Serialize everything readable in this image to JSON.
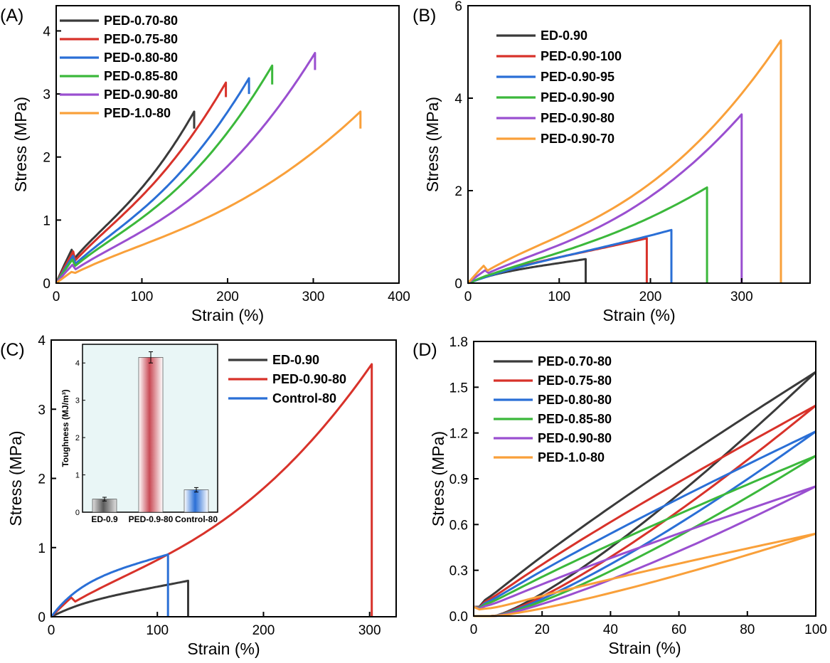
{
  "colors": {
    "black": "#3a3a3a",
    "red": "#d8322a",
    "blue": "#2a6fd6",
    "green": "#3bb83b",
    "purple": "#9a4fd0",
    "orange": "#f9a03a"
  },
  "chart_data": [
    {
      "panel": "(A)",
      "type": "line",
      "xlabel": "Strain (%)",
      "ylabel": "Stress (MPa)",
      "xlim": [
        0,
        400
      ],
      "ylim": [
        0,
        4.4
      ],
      "xticks": [
        "0",
        "100",
        "200",
        "300",
        "400"
      ],
      "yticks": [
        "0",
        "1",
        "2",
        "3",
        "4"
      ],
      "legend_position": "top-left",
      "series": [
        {
          "name": "PED-0.70-80",
          "color": "black",
          "break_strain": 161,
          "peak_stress": 2.72,
          "drop_stress": 2.45,
          "mid_stress": 1.25,
          "shape": 1.8,
          "init_slope": 0.035
        },
        {
          "name": "PED-0.75-80",
          "color": "red",
          "break_strain": 198,
          "peak_stress": 3.18,
          "drop_stress": 2.95,
          "mid_stress": 1.3,
          "shape": 1.8,
          "init_slope": 0.03
        },
        {
          "name": "PED-0.80-80",
          "color": "blue",
          "break_strain": 225,
          "peak_stress": 3.25,
          "drop_stress": 3.0,
          "mid_stress": 1.27,
          "shape": 1.9,
          "init_slope": 0.027
        },
        {
          "name": "PED-0.85-80",
          "color": "green",
          "break_strain": 252,
          "peak_stress": 3.45,
          "drop_stress": 3.15,
          "mid_stress": 1.3,
          "shape": 2.0,
          "init_slope": 0.024
        },
        {
          "name": "PED-0.90-80",
          "color": "purple",
          "break_strain": 302,
          "peak_stress": 3.65,
          "drop_stress": 3.38,
          "mid_stress": 1.22,
          "shape": 2.1,
          "init_slope": 0.018
        },
        {
          "name": "PED-1.0-80",
          "color": "orange",
          "break_strain": 355,
          "peak_stress": 2.72,
          "drop_stress": 2.45,
          "mid_stress": 1.05,
          "shape": 2.0,
          "init_slope": 0.01
        }
      ]
    },
    {
      "panel": "(B)",
      "type": "line",
      "xlabel": "Strain (%)",
      "ylabel": "Stress (MPa)",
      "xlim": [
        0,
        375
      ],
      "ylim": [
        0,
        6
      ],
      "xticks": [
        "0",
        "100",
        "200",
        "300"
      ],
      "yticks": [
        "0",
        "2",
        "4",
        "6"
      ],
      "legend_position": "top-left",
      "series": [
        {
          "name": "ED-0.90",
          "color": "black",
          "break_strain": 129,
          "peak_stress": 0.52,
          "drop_stress": 0,
          "mid_stress": 0.28,
          "shape": 1.2,
          "init_slope": 0.006
        },
        {
          "name": "PED-0.90-100",
          "color": "red",
          "break_strain": 196,
          "peak_stress": 0.97,
          "drop_stress": 0,
          "mid_stress": 0.45,
          "shape": 1.3,
          "init_slope": 0.006
        },
        {
          "name": "PED-0.90-95",
          "color": "blue",
          "break_strain": 223,
          "peak_stress": 1.15,
          "drop_stress": 0,
          "mid_stress": 0.5,
          "shape": 1.4,
          "init_slope": 0.006
        },
        {
          "name": "PED-0.90-90",
          "color": "green",
          "break_strain": 262,
          "peak_stress": 2.07,
          "drop_stress": 0,
          "mid_stress": 0.78,
          "shape": 1.8,
          "init_slope": 0.008
        },
        {
          "name": "PED-0.90-80",
          "color": "purple",
          "break_strain": 300,
          "peak_stress": 3.65,
          "drop_stress": 0,
          "mid_stress": 1.22,
          "shape": 2.1,
          "init_slope": 0.016
        },
        {
          "name": "PED-0.90-70",
          "color": "orange",
          "break_strain": 343,
          "peak_stress": 5.25,
          "drop_stress": 0,
          "mid_stress": 1.8,
          "shape": 2.2,
          "init_slope": 0.03
        }
      ]
    },
    {
      "panel": "(C)",
      "type": "line",
      "xlabel": "Strain (%)",
      "ylabel": "Stress (MPa)",
      "xlim": [
        0,
        325
      ],
      "ylim": [
        0,
        4
      ],
      "xticks": [
        "0",
        "100",
        "200",
        "300"
      ],
      "yticks": [
        "0",
        "1",
        "2",
        "3",
        "4"
      ],
      "legend_position": "top-right",
      "series": [
        {
          "name": "ED-0.90",
          "color": "black",
          "break_strain": 129,
          "peak_stress": 0.52,
          "drop_stress": 0,
          "mid_stress": 0.28,
          "shape": 1.2,
          "init_slope": 0.006
        },
        {
          "name": "PED-0.90-80",
          "color": "red",
          "break_strain": 302,
          "peak_stress": 3.65,
          "drop_stress": 0,
          "mid_stress": 1.22,
          "shape": 2.1,
          "init_slope": 0.016
        },
        {
          "name": "Control-80",
          "color": "blue",
          "break_strain": 110,
          "peak_stress": 0.9,
          "drop_stress": 0,
          "mid_stress": 0.6,
          "shape": 1.1,
          "init_slope": 0.016
        }
      ],
      "inset": {
        "type": "bar",
        "ylabel": "Toughness (MJ/m³)",
        "ylim": [
          0,
          4.5
        ],
        "yticks": [
          "0",
          "1",
          "2",
          "3",
          "4"
        ],
        "categories": [
          "ED-0.9",
          "PED-0.9-80",
          "Control-80"
        ],
        "values": [
          0.35,
          4.15,
          0.6
        ],
        "errors": [
          0.05,
          0.15,
          0.06
        ],
        "colors": [
          "black",
          "red",
          "blue"
        ]
      }
    },
    {
      "panel": "(D)",
      "type": "line",
      "xlabel": "Strain (%)",
      "ylabel": "Stress (MPa)",
      "xlim": [
        0,
        100
      ],
      "ylim": [
        0,
        1.8
      ],
      "xticks": [
        "0",
        "20",
        "40",
        "60",
        "80",
        "100"
      ],
      "yticks": [
        "0.0",
        "0.3",
        "0.6",
        "0.9",
        "1.2",
        "1.5",
        "1.8"
      ],
      "legend_position": "top-left",
      "hysteresis": true,
      "series": [
        {
          "name": "PED-0.70-80",
          "color": "black",
          "max_stress": 1.6,
          "sag": 0.16
        },
        {
          "name": "PED-0.75-80",
          "color": "red",
          "max_stress": 1.38,
          "sag": 0.14
        },
        {
          "name": "PED-0.80-80",
          "color": "blue",
          "max_stress": 1.21,
          "sag": 0.12
        },
        {
          "name": "PED-0.85-80",
          "color": "green",
          "max_stress": 1.05,
          "sag": 0.11
        },
        {
          "name": "PED-0.90-80",
          "color": "purple",
          "max_stress": 0.85,
          "sag": 0.09
        },
        {
          "name": "PED-1.0-80",
          "color": "orange",
          "max_stress": 0.54,
          "sag": 0.06
        }
      ]
    }
  ]
}
